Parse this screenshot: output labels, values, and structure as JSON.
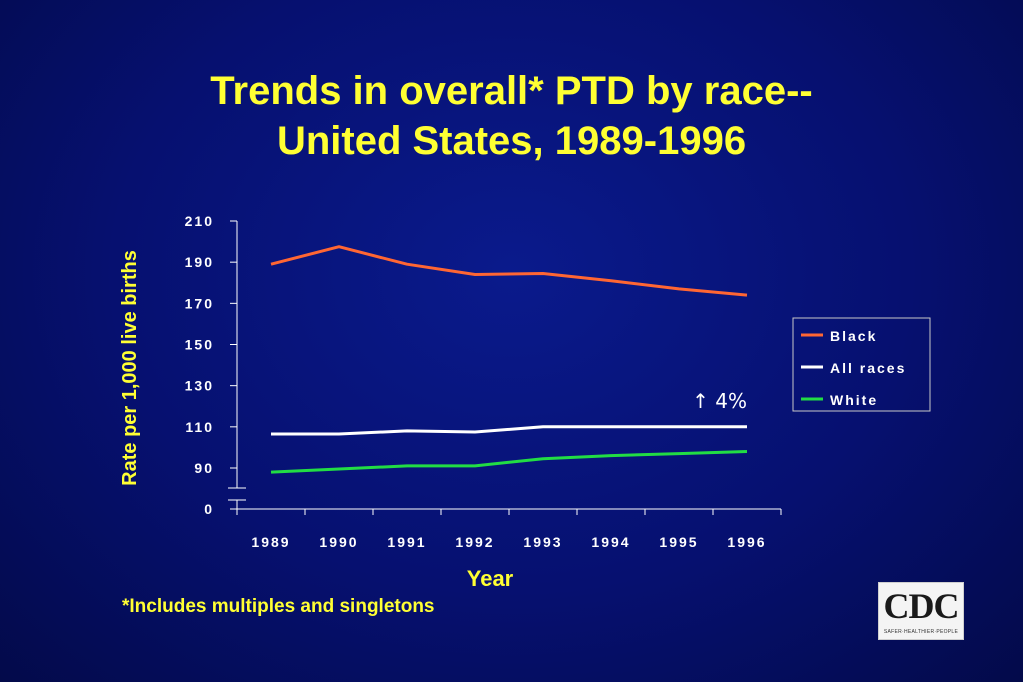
{
  "slide": {
    "title_line1": "Trends in overall* PTD by race--",
    "title_line2": "United States, 1989-1996",
    "footnote": "*Includes multiples and singletons",
    "logo": {
      "text": "CDC",
      "tagline": "SAFER·HEALTHIER·PEOPLE"
    }
  },
  "colors": {
    "background": "#061070",
    "title": "#ffff33",
    "axis_text": "#ffffff",
    "black_series": "#ff6633",
    "all_races_series": "#ffffff",
    "white_series": "#22dd44"
  },
  "chart_data": {
    "type": "line",
    "title": "Trends in overall* PTD by race-- United States, 1989-1996",
    "xlabel": "Year",
    "ylabel": "Rate per 1,000 live births",
    "categories": [
      "1989",
      "1990",
      "1991",
      "1992",
      "1993",
      "1994",
      "1995",
      "1996"
    ],
    "y_ticks": [
      "210",
      "190",
      "170",
      "150",
      "130",
      "110",
      "90",
      "0"
    ],
    "y_axis_break": true,
    "ylim": [
      80,
      210
    ],
    "series": [
      {
        "name": "Black",
        "color": "#ff6633",
        "values": [
          189,
          197.5,
          189,
          184,
          184.5,
          181,
          177,
          174
        ]
      },
      {
        "name": "All races",
        "color": "#ffffff",
        "values": [
          106.5,
          106.5,
          108,
          107.5,
          110,
          110,
          110,
          110
        ]
      },
      {
        "name": "White",
        "color": "#22dd44",
        "values": [
          88,
          89.5,
          91,
          91,
          94.5,
          96,
          97,
          98
        ]
      }
    ],
    "annotations": [
      {
        "text": "↑ 4%",
        "series": "All races"
      }
    ],
    "legend": {
      "position": "right",
      "entries": [
        "Black",
        "All races",
        "White"
      ]
    },
    "grid": false
  }
}
